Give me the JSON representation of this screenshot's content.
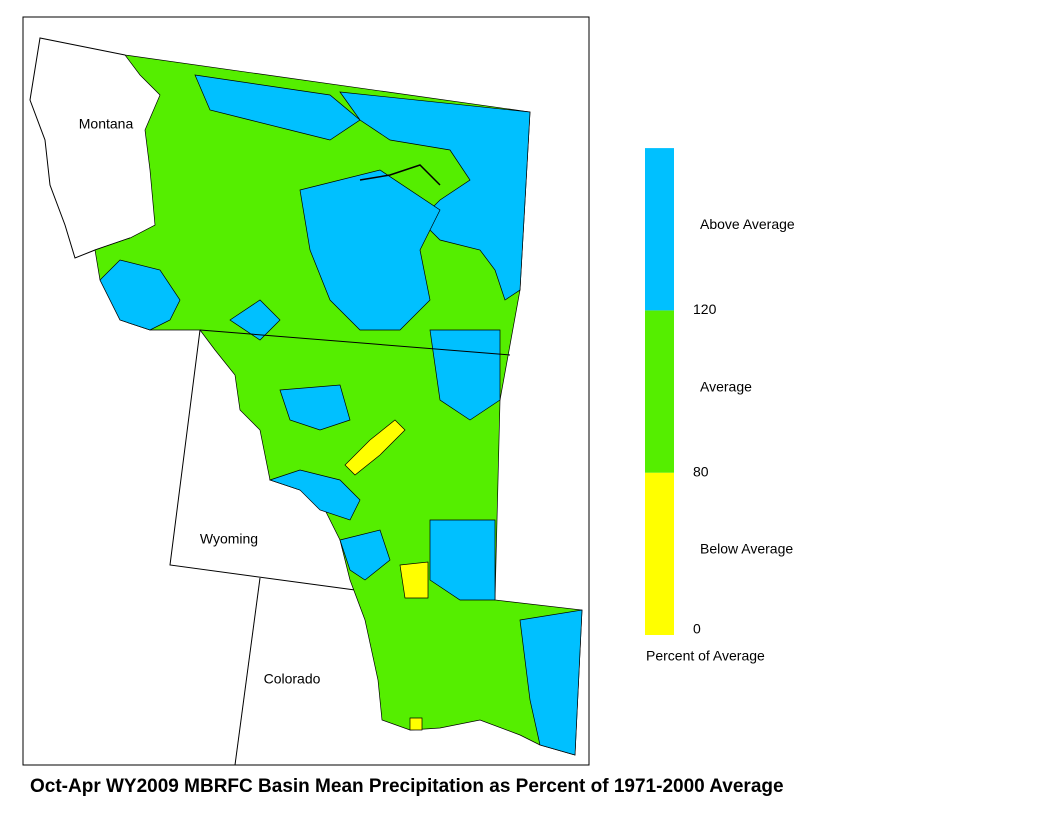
{
  "map": {
    "state_labels": [
      "Montana",
      "Wyoming",
      "Colorado"
    ]
  },
  "legend": {
    "title": "Percent of Average",
    "classes": [
      {
        "label": "Below Average",
        "color": "#ffff00"
      },
      {
        "label": "Average",
        "color": "#55ee00"
      },
      {
        "label": "Above Average",
        "color": "#00c0ff"
      }
    ],
    "ticks": [
      0,
      80,
      120
    ]
  },
  "title": "Oct-Apr WY2009 MBRFC Basin Mean Precipitation as Percent of 1971-2000 Average"
}
